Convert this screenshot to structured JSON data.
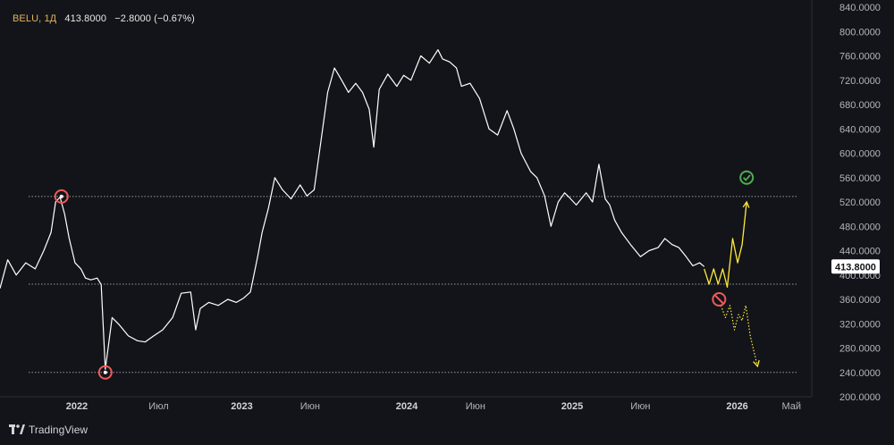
{
  "header": {
    "symbol": "BELU, 1Д",
    "last": "413.8000",
    "change": "−2.8000 (−0.67%)"
  },
  "branding": {
    "name": "TradingView"
  },
  "colors": {
    "background": "#131419",
    "price_line": "#ffffff",
    "scenario_up": "#ffeb3b",
    "scenario_down": "#ffeb3b",
    "marker_red": "#f05a5a",
    "marker_green": "#4caf50",
    "level_line": "#9598a1"
  },
  "chart_data": {
    "type": "line",
    "title": "",
    "y_ticks": [
      "200.0000",
      "240.0000",
      "280.0000",
      "320.0000",
      "360.0000",
      "400.0000",
      "440.0000",
      "480.0000",
      "520.0000",
      "560.0000",
      "600.0000",
      "640.0000",
      "680.0000",
      "720.0000",
      "760.0000",
      "800.0000",
      "840.0000"
    ],
    "x_ticks": [
      {
        "label": "2022",
        "date": "2022-01-01",
        "year": true
      },
      {
        "label": "Июл",
        "date": "2022-07-01",
        "year": false
      },
      {
        "label": "2023",
        "date": "2023-01-01",
        "year": true
      },
      {
        "label": "Июн",
        "date": "2023-06-01",
        "year": false
      },
      {
        "label": "2024",
        "date": "2024-01-01",
        "year": true
      },
      {
        "label": "Июн",
        "date": "2024-06-01",
        "year": false
      },
      {
        "label": "2025",
        "date": "2025-01-01",
        "year": true
      },
      {
        "label": "Июн",
        "date": "2025-06-01",
        "year": false
      },
      {
        "label": "2026",
        "date": "2026-01-01",
        "year": true
      },
      {
        "label": "Май",
        "date": "2026-05-01",
        "year": false
      }
    ],
    "ylim": [
      200,
      840
    ],
    "xlim": [
      "2021-07-15",
      "2026-06-15"
    ],
    "current_price": "413.8000",
    "current_price_value": 413.8,
    "levels": [
      529,
      385,
      240
    ],
    "series": [
      {
        "role": "price",
        "x": [
          "2021-07-15",
          "2021-08-01",
          "2021-08-20",
          "2021-09-10",
          "2021-10-01",
          "2021-10-20",
          "2021-11-05",
          "2021-11-15",
          "2021-11-25",
          "2021-12-05",
          "2021-12-15",
          "2021-12-28",
          "2022-01-10",
          "2022-01-20",
          "2022-02-01",
          "2022-02-15",
          "2022-02-24",
          "2022-03-05",
          "2022-03-20",
          "2022-04-05",
          "2022-04-25",
          "2022-05-15",
          "2022-06-01",
          "2022-06-20",
          "2022-07-10",
          "2022-08-01",
          "2022-08-20",
          "2022-09-10",
          "2022-09-21",
          "2022-10-01",
          "2022-10-20",
          "2022-11-10",
          "2022-12-01",
          "2022-12-20",
          "2023-01-05",
          "2023-01-20",
          "2023-02-05",
          "2023-02-15",
          "2023-03-01",
          "2023-03-15",
          "2023-04-01",
          "2023-04-20",
          "2023-05-10",
          "2023-05-25",
          "2023-06-10",
          "2023-06-25",
          "2023-07-10",
          "2023-07-25",
          "2023-08-10",
          "2023-08-25",
          "2023-09-10",
          "2023-09-25",
          "2023-10-10",
          "2023-10-20",
          "2023-11-01",
          "2023-11-20",
          "2023-12-10",
          "2023-12-25",
          "2024-01-10",
          "2024-02-01",
          "2024-02-20",
          "2024-03-10",
          "2024-03-20",
          "2024-04-05",
          "2024-04-20",
          "2024-05-01",
          "2024-05-20",
          "2024-06-10",
          "2024-07-01",
          "2024-07-20",
          "2024-08-10",
          "2024-08-25",
          "2024-09-10",
          "2024-10-01",
          "2024-10-15",
          "2024-11-01",
          "2024-11-15",
          "2024-12-01",
          "2024-12-15",
          "2024-12-25",
          "2025-01-10",
          "2025-02-01",
          "2025-02-15",
          "2025-03-01",
          "2025-03-15",
          "2025-03-25",
          "2025-04-05",
          "2025-04-20",
          "2025-05-10",
          "2025-06-01",
          "2025-06-20",
          "2025-07-10",
          "2025-07-25",
          "2025-08-10",
          "2025-08-25",
          "2025-09-10",
          "2025-09-25",
          "2025-10-10",
          "2025-10-20"
        ],
        "values": [
          378,
          425,
          400,
          420,
          410,
          440,
          470,
          520,
          528,
          500,
          460,
          420,
          410,
          395,
          392,
          395,
          384,
          245,
          330,
          318,
          300,
          292,
          290,
          300,
          310,
          330,
          370,
          372,
          310,
          345,
          355,
          350,
          360,
          355,
          362,
          372,
          430,
          470,
          510,
          560,
          540,
          525,
          548,
          530,
          540,
          620,
          700,
          740,
          720,
          700,
          715,
          700,
          672,
          610,
          705,
          730,
          710,
          728,
          720,
          760,
          748,
          770,
          755,
          750,
          740,
          710,
          715,
          690,
          640,
          630,
          670,
          640,
          600,
          570,
          560,
          530,
          480,
          520,
          535,
          528,
          515,
          535,
          520,
          582,
          525,
          515,
          490,
          470,
          450,
          430,
          440,
          445,
          460,
          450,
          445,
          430,
          415,
          420,
          413.8
        ]
      },
      {
        "role": "scenario-up",
        "x": [
          "2025-10-20",
          "2025-10-31",
          "2025-11-10",
          "2025-11-20",
          "2025-11-30",
          "2025-12-10",
          "2025-12-22",
          "2026-01-02",
          "2026-01-12",
          "2026-01-22"
        ],
        "values": [
          410,
          385,
          410,
          385,
          410,
          380,
          460,
          420,
          450,
          520
        ]
      },
      {
        "role": "scenario-down",
        "x": [
          "2025-11-26",
          "2025-12-06",
          "2025-12-16",
          "2025-12-26",
          "2026-01-04",
          "2026-01-12",
          "2026-01-20",
          "2026-01-30",
          "2026-02-15"
        ],
        "values": [
          350,
          330,
          350,
          310,
          335,
          325,
          350,
          300,
          250
        ]
      }
    ],
    "markers": [
      {
        "kind": "red-circle",
        "date": "2021-11-28",
        "value": 529
      },
      {
        "kind": "red-circle",
        "date": "2022-03-05",
        "value": 240
      },
      {
        "kind": "red-forbidden",
        "date": "2025-11-22",
        "value": 360
      },
      {
        "kind": "green-check",
        "date": "2026-01-22",
        "value": 560
      }
    ]
  }
}
